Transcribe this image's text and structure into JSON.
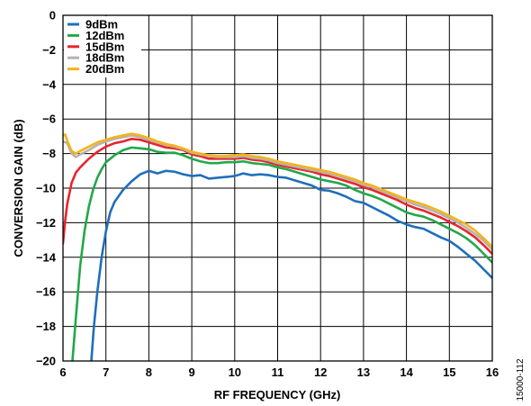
{
  "chart_data": {
    "type": "line",
    "xlabel": "RF FREQUENCY (GHz)",
    "ylabel": "CONVERSION GAIN (dB)",
    "xlim": [
      6,
      16
    ],
    "ylim": [
      -20,
      0
    ],
    "xticks": [
      6,
      7,
      8,
      9,
      10,
      11,
      12,
      13,
      14,
      15,
      16
    ],
    "yticks": [
      0,
      -2,
      -4,
      -6,
      -8,
      -10,
      -12,
      -14,
      -16,
      -18,
      -20
    ],
    "xtick_labels": [
      "6",
      "7",
      "8",
      "9",
      "10",
      "11",
      "12",
      "13",
      "14",
      "15",
      "16"
    ],
    "ytick_labels": [
      "0",
      "−2",
      "−4",
      "−6",
      "−8",
      "−10",
      "−12",
      "−14",
      "−16",
      "−18",
      "−20"
    ],
    "grid": true,
    "legend_position": "top-left",
    "series": [
      {
        "name": "9dBm",
        "color": "#1f6fba",
        "points": [
          [
            6.66,
            -20
          ],
          [
            6.72,
            -18
          ],
          [
            6.8,
            -16
          ],
          [
            6.9,
            -14
          ],
          [
            7.0,
            -12.5
          ],
          [
            7.1,
            -11.4
          ],
          [
            7.2,
            -10.8
          ],
          [
            7.4,
            -10.1
          ],
          [
            7.6,
            -9.6
          ],
          [
            7.8,
            -9.2
          ],
          [
            8.0,
            -9.0
          ],
          [
            8.2,
            -9.15
          ],
          [
            8.4,
            -9.0
          ],
          [
            8.6,
            -9.05
          ],
          [
            8.8,
            -9.2
          ],
          [
            9.0,
            -9.3
          ],
          [
            9.2,
            -9.25
          ],
          [
            9.4,
            -9.45
          ],
          [
            9.6,
            -9.4
          ],
          [
            9.8,
            -9.35
          ],
          [
            10.0,
            -9.3
          ],
          [
            10.2,
            -9.15
          ],
          [
            10.4,
            -9.25
          ],
          [
            10.6,
            -9.2
          ],
          [
            10.8,
            -9.25
          ],
          [
            11.0,
            -9.35
          ],
          [
            11.2,
            -9.4
          ],
          [
            11.4,
            -9.55
          ],
          [
            11.6,
            -9.7
          ],
          [
            11.8,
            -9.85
          ],
          [
            12.0,
            -10.1
          ],
          [
            12.2,
            -10.15
          ],
          [
            12.4,
            -10.3
          ],
          [
            12.6,
            -10.5
          ],
          [
            12.8,
            -10.75
          ],
          [
            13.0,
            -10.85
          ],
          [
            13.2,
            -11.1
          ],
          [
            13.4,
            -11.35
          ],
          [
            13.6,
            -11.6
          ],
          [
            13.8,
            -11.9
          ],
          [
            14.0,
            -12.1
          ],
          [
            14.2,
            -12.25
          ],
          [
            14.4,
            -12.35
          ],
          [
            14.6,
            -12.6
          ],
          [
            14.8,
            -12.85
          ],
          [
            15.0,
            -13.05
          ],
          [
            15.2,
            -13.4
          ],
          [
            15.4,
            -13.8
          ],
          [
            15.6,
            -14.2
          ],
          [
            15.8,
            -14.7
          ],
          [
            16.0,
            -15.2
          ]
        ]
      },
      {
        "name": "12dBm",
        "color": "#22a84a",
        "points": [
          [
            6.22,
            -20
          ],
          [
            6.3,
            -17.5
          ],
          [
            6.4,
            -14.5
          ],
          [
            6.5,
            -12.5
          ],
          [
            6.6,
            -11.1
          ],
          [
            6.7,
            -10.1
          ],
          [
            6.8,
            -9.4
          ],
          [
            6.9,
            -8.9
          ],
          [
            7.0,
            -8.5
          ],
          [
            7.2,
            -8.1
          ],
          [
            7.4,
            -7.8
          ],
          [
            7.6,
            -7.65
          ],
          [
            7.8,
            -7.7
          ],
          [
            8.0,
            -7.75
          ],
          [
            8.2,
            -7.9
          ],
          [
            8.4,
            -7.95
          ],
          [
            8.6,
            -7.95
          ],
          [
            8.8,
            -8.1
          ],
          [
            9.0,
            -8.3
          ],
          [
            9.2,
            -8.45
          ],
          [
            9.4,
            -8.55
          ],
          [
            9.6,
            -8.55
          ],
          [
            9.8,
            -8.5
          ],
          [
            10.0,
            -8.5
          ],
          [
            10.2,
            -8.45
          ],
          [
            10.4,
            -8.55
          ],
          [
            10.6,
            -8.6
          ],
          [
            10.8,
            -8.65
          ],
          [
            11.0,
            -8.8
          ],
          [
            11.2,
            -8.9
          ],
          [
            11.4,
            -9.05
          ],
          [
            11.6,
            -9.2
          ],
          [
            11.8,
            -9.35
          ],
          [
            12.0,
            -9.5
          ],
          [
            12.2,
            -9.6
          ],
          [
            12.4,
            -9.7
          ],
          [
            12.6,
            -9.85
          ],
          [
            12.8,
            -10.1
          ],
          [
            13.0,
            -10.3
          ],
          [
            13.2,
            -10.45
          ],
          [
            13.4,
            -10.65
          ],
          [
            13.6,
            -10.9
          ],
          [
            13.8,
            -11.15
          ],
          [
            14.0,
            -11.4
          ],
          [
            14.2,
            -11.55
          ],
          [
            14.4,
            -11.65
          ],
          [
            14.6,
            -11.85
          ],
          [
            14.8,
            -12.1
          ],
          [
            15.0,
            -12.35
          ],
          [
            15.2,
            -12.6
          ],
          [
            15.4,
            -12.9
          ],
          [
            15.6,
            -13.3
          ],
          [
            15.8,
            -13.8
          ],
          [
            16.0,
            -14.3
          ]
        ]
      },
      {
        "name": "15dBm",
        "color": "#e8252d",
        "points": [
          [
            6.0,
            -13.2
          ],
          [
            6.05,
            -11.9
          ],
          [
            6.1,
            -10.9
          ],
          [
            6.2,
            -9.7
          ],
          [
            6.3,
            -9.1
          ],
          [
            6.4,
            -8.8
          ],
          [
            6.5,
            -8.55
          ],
          [
            6.6,
            -8.3
          ],
          [
            6.7,
            -8.1
          ],
          [
            6.8,
            -7.9
          ],
          [
            7.0,
            -7.6
          ],
          [
            7.2,
            -7.4
          ],
          [
            7.4,
            -7.3
          ],
          [
            7.6,
            -7.15
          ],
          [
            7.8,
            -7.2
          ],
          [
            8.0,
            -7.35
          ],
          [
            8.2,
            -7.5
          ],
          [
            8.4,
            -7.65
          ],
          [
            8.6,
            -7.7
          ],
          [
            8.8,
            -7.8
          ],
          [
            9.0,
            -8.05
          ],
          [
            9.2,
            -8.15
          ],
          [
            9.4,
            -8.3
          ],
          [
            9.6,
            -8.3
          ],
          [
            9.8,
            -8.3
          ],
          [
            10.0,
            -8.3
          ],
          [
            10.2,
            -8.25
          ],
          [
            10.4,
            -8.35
          ],
          [
            10.6,
            -8.4
          ],
          [
            10.8,
            -8.5
          ],
          [
            11.0,
            -8.65
          ],
          [
            11.2,
            -8.75
          ],
          [
            11.4,
            -8.85
          ],
          [
            11.6,
            -8.95
          ],
          [
            11.8,
            -9.05
          ],
          [
            12.0,
            -9.2
          ],
          [
            12.2,
            -9.3
          ],
          [
            12.4,
            -9.45
          ],
          [
            12.6,
            -9.6
          ],
          [
            12.8,
            -9.75
          ],
          [
            13.0,
            -9.95
          ],
          [
            13.2,
            -10.1
          ],
          [
            13.4,
            -10.3
          ],
          [
            13.6,
            -10.5
          ],
          [
            13.8,
            -10.7
          ],
          [
            14.0,
            -10.95
          ],
          [
            14.2,
            -11.15
          ],
          [
            14.4,
            -11.3
          ],
          [
            14.6,
            -11.5
          ],
          [
            14.8,
            -11.7
          ],
          [
            15.0,
            -11.95
          ],
          [
            15.2,
            -12.2
          ],
          [
            15.4,
            -12.5
          ],
          [
            15.6,
            -12.85
          ],
          [
            15.8,
            -13.3
          ],
          [
            16.0,
            -13.8
          ]
        ]
      },
      {
        "name": "18dBm",
        "color": "#b3b3b3",
        "points": [
          [
            6.0,
            -7.3
          ],
          [
            6.1,
            -7.4
          ],
          [
            6.2,
            -8.0
          ],
          [
            6.3,
            -8.2
          ],
          [
            6.4,
            -8.05
          ],
          [
            6.6,
            -7.8
          ],
          [
            6.8,
            -7.5
          ],
          [
            7.0,
            -7.3
          ],
          [
            7.2,
            -7.15
          ],
          [
            7.4,
            -7.05
          ],
          [
            7.6,
            -6.95
          ],
          [
            7.8,
            -7.05
          ],
          [
            8.0,
            -7.2
          ],
          [
            8.2,
            -7.35
          ],
          [
            8.4,
            -7.5
          ],
          [
            8.6,
            -7.6
          ],
          [
            8.8,
            -7.75
          ],
          [
            9.0,
            -7.95
          ],
          [
            9.2,
            -8.05
          ],
          [
            9.4,
            -8.15
          ],
          [
            9.6,
            -8.2
          ],
          [
            9.8,
            -8.2
          ],
          [
            10.0,
            -8.2
          ],
          [
            10.2,
            -8.15
          ],
          [
            10.4,
            -8.25
          ],
          [
            10.6,
            -8.3
          ],
          [
            10.8,
            -8.4
          ],
          [
            11.0,
            -8.55
          ],
          [
            11.2,
            -8.65
          ],
          [
            11.4,
            -8.75
          ],
          [
            11.6,
            -8.85
          ],
          [
            11.8,
            -8.95
          ],
          [
            12.0,
            -9.05
          ],
          [
            12.2,
            -9.15
          ],
          [
            12.4,
            -9.3
          ],
          [
            12.6,
            -9.45
          ],
          [
            12.8,
            -9.6
          ],
          [
            13.0,
            -9.8
          ],
          [
            13.2,
            -9.95
          ],
          [
            13.4,
            -10.15
          ],
          [
            13.6,
            -10.35
          ],
          [
            13.8,
            -10.55
          ],
          [
            14.0,
            -10.75
          ],
          [
            14.2,
            -10.95
          ],
          [
            14.4,
            -11.1
          ],
          [
            14.6,
            -11.3
          ],
          [
            14.8,
            -11.5
          ],
          [
            15.0,
            -11.75
          ],
          [
            15.2,
            -12.0
          ],
          [
            15.4,
            -12.3
          ],
          [
            15.6,
            -12.65
          ],
          [
            15.8,
            -13.05
          ],
          [
            16.0,
            -13.55
          ]
        ]
      },
      {
        "name": "20dBm",
        "color": "#f5b31b",
        "points": [
          [
            6.0,
            -6.95
          ],
          [
            6.05,
            -6.9
          ],
          [
            6.1,
            -7.25
          ],
          [
            6.2,
            -7.85
          ],
          [
            6.3,
            -8.0
          ],
          [
            6.4,
            -7.85
          ],
          [
            6.6,
            -7.6
          ],
          [
            6.8,
            -7.35
          ],
          [
            7.0,
            -7.2
          ],
          [
            7.2,
            -7.05
          ],
          [
            7.4,
            -6.95
          ],
          [
            7.6,
            -6.85
          ],
          [
            7.8,
            -6.95
          ],
          [
            8.0,
            -7.1
          ],
          [
            8.2,
            -7.3
          ],
          [
            8.4,
            -7.45
          ],
          [
            8.6,
            -7.55
          ],
          [
            8.8,
            -7.7
          ],
          [
            9.0,
            -7.9
          ],
          [
            9.2,
            -8.0
          ],
          [
            9.4,
            -8.1
          ],
          [
            9.6,
            -8.15
          ],
          [
            9.8,
            -8.15
          ],
          [
            10.0,
            -8.1
          ],
          [
            10.2,
            -8.05
          ],
          [
            10.4,
            -8.15
          ],
          [
            10.6,
            -8.2
          ],
          [
            10.8,
            -8.3
          ],
          [
            11.0,
            -8.45
          ],
          [
            11.2,
            -8.55
          ],
          [
            11.4,
            -8.65
          ],
          [
            11.6,
            -8.75
          ],
          [
            11.8,
            -8.85
          ],
          [
            12.0,
            -8.95
          ],
          [
            12.2,
            -9.05
          ],
          [
            12.4,
            -9.2
          ],
          [
            12.6,
            -9.35
          ],
          [
            12.8,
            -9.5
          ],
          [
            13.0,
            -9.7
          ],
          [
            13.2,
            -9.85
          ],
          [
            13.4,
            -10.05
          ],
          [
            13.6,
            -10.25
          ],
          [
            13.8,
            -10.45
          ],
          [
            14.0,
            -10.65
          ],
          [
            14.2,
            -10.8
          ],
          [
            14.4,
            -10.95
          ],
          [
            14.6,
            -11.15
          ],
          [
            14.8,
            -11.35
          ],
          [
            15.0,
            -11.6
          ],
          [
            15.2,
            -11.85
          ],
          [
            15.4,
            -12.1
          ],
          [
            15.6,
            -12.45
          ],
          [
            15.8,
            -12.9
          ],
          [
            16.0,
            -13.4
          ]
        ]
      }
    ]
  },
  "figure_id": "15000-112"
}
